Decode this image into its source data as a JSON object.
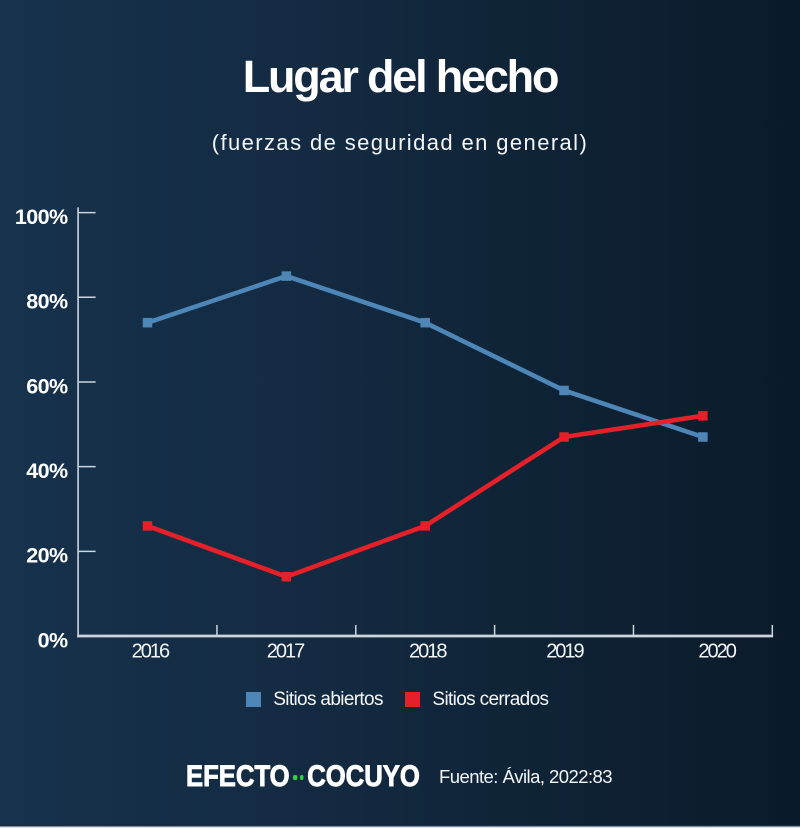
{
  "title": "Lugar del hecho",
  "subtitle": "(fuerzas de seguridad en general)",
  "footer": {
    "logo_word1": "EFECTO",
    "logo_word2": "COCUYO",
    "logo_dot_color": "#2fd23d",
    "source_label": "Fuente: Ávila, 2022:83"
  },
  "colors": {
    "background_left": "#17324d",
    "background_right": "#0b1a2a",
    "axis": "#ccd5dd",
    "tick_label": "#ffffff",
    "series_abiertos": "#4e87b7",
    "series_cerrados": "#e62028"
  },
  "chart_data": {
    "type": "line",
    "title": "Lugar del hecho",
    "subtitle": "(fuerzas de seguridad en general)",
    "categories": [
      "2016",
      "2017",
      "2018",
      "2019",
      "2020"
    ],
    "series": [
      {
        "name": "Sitios abiertos",
        "color": "#4e87b7",
        "values": [
          74,
          85,
          74,
          58,
          47
        ]
      },
      {
        "name": "Sitios cerrados",
        "color": "#e62028",
        "values": [
          26,
          14,
          26,
          47,
          52
        ]
      }
    ],
    "ylabel": "",
    "xlabel": "",
    "ylim": [
      0,
      100
    ],
    "ytick_step": 20,
    "ytick_suffix": "%",
    "grid": false,
    "legend_position": "bottom",
    "layout": {
      "x_label_offsets": [
        2.4,
        -1.3,
        2.1,
        0.4,
        13.8
      ]
    }
  }
}
